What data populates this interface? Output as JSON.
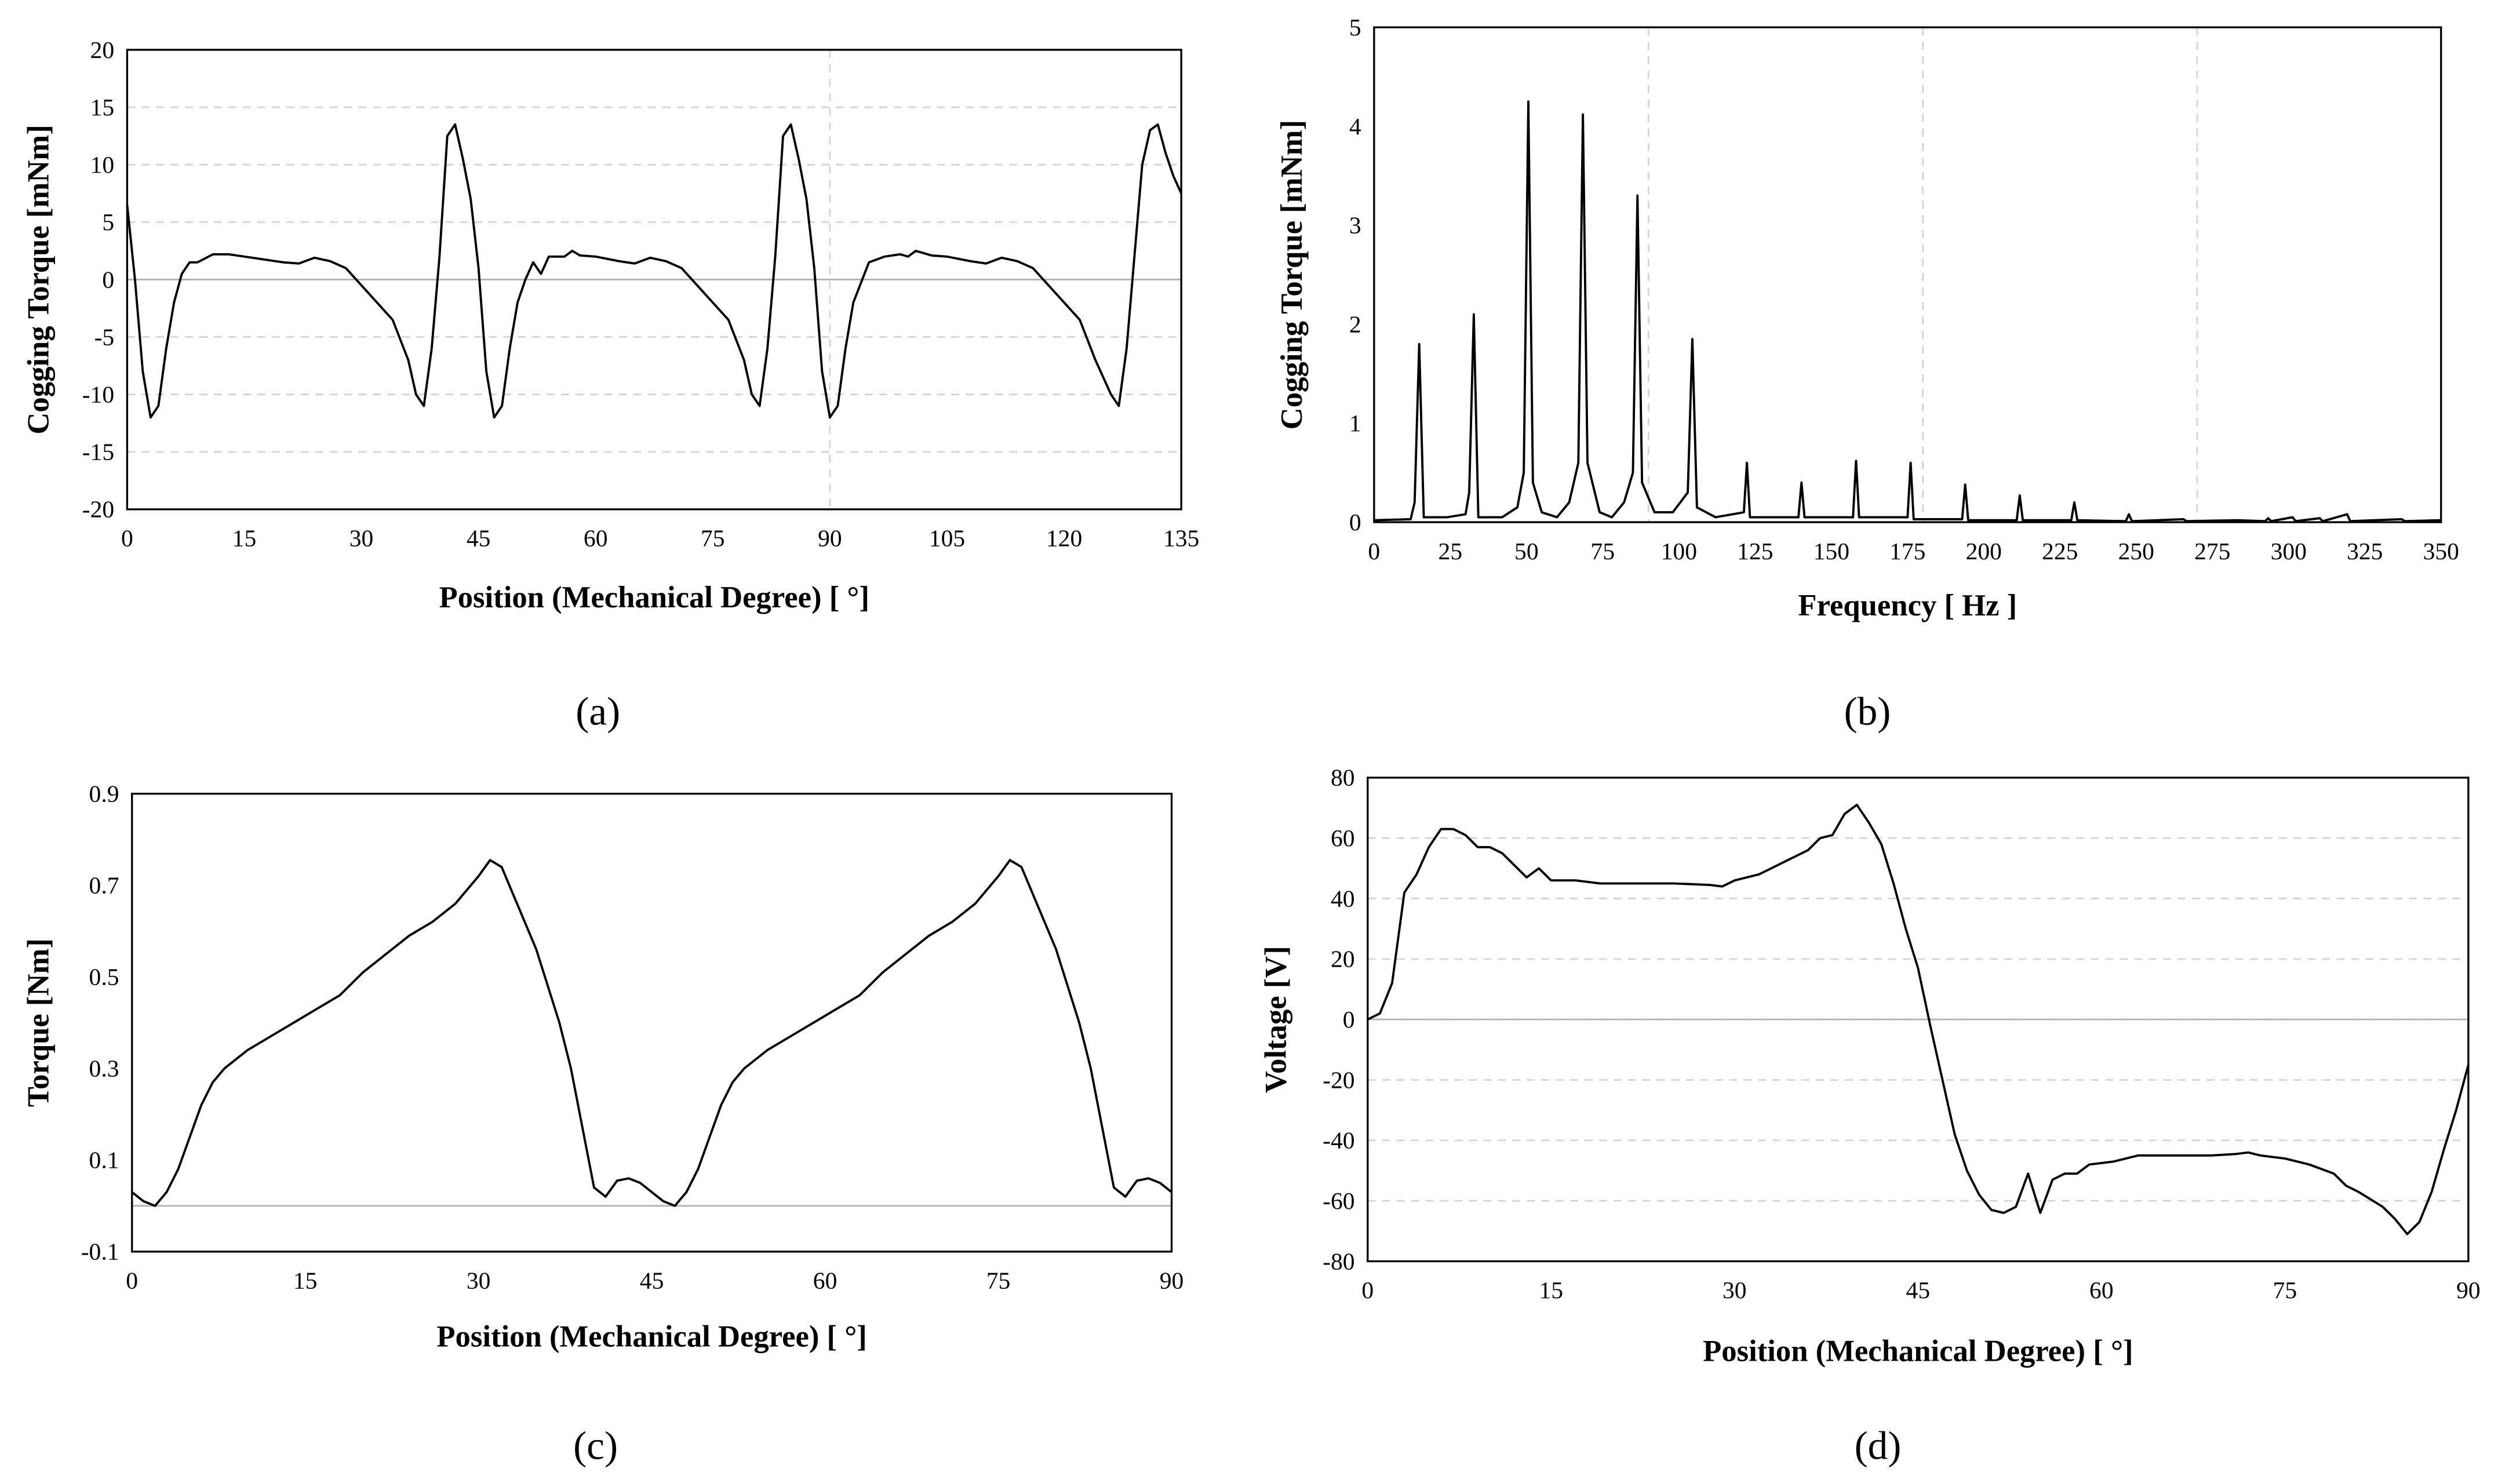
{
  "chart_data": [
    {
      "type": "line",
      "label": "(a)",
      "xlabel": "Position (Mechanical Degree)  [ °]",
      "ylabel": "Cogging Torque [mNm]",
      "xlim": [
        0,
        135
      ],
      "ylim": [
        -20,
        20
      ],
      "xticks": [
        0,
        15,
        30,
        45,
        60,
        75,
        90,
        105,
        120,
        135
      ],
      "yticks": [
        -20,
        -15,
        -10,
        -5,
        0,
        5,
        10,
        15,
        20
      ],
      "grid": true,
      "zero_line": true,
      "xgrid": [
        90
      ],
      "color": "#000000",
      "x": [
        0,
        1,
        2,
        3,
        4,
        5,
        6,
        7,
        8,
        9,
        11,
        13,
        15,
        17,
        20,
        22,
        24,
        26,
        28,
        30,
        32,
        34,
        36,
        37,
        38,
        39,
        40,
        41,
        42,
        43,
        44,
        45,
        46,
        47,
        48,
        49,
        50,
        51,
        52,
        53,
        54,
        56,
        57,
        58,
        60,
        63,
        65,
        67,
        69,
        71,
        73,
        75,
        77,
        79,
        80,
        81,
        82,
        83,
        84,
        85,
        86,
        87,
        88,
        89,
        90,
        91,
        92,
        93,
        95,
        97,
        99,
        100,
        101,
        103,
        105,
        108,
        110,
        112,
        114,
        116,
        118,
        120,
        122,
        124,
        126,
        127,
        128,
        129,
        130,
        131,
        132,
        133,
        134,
        135
      ],
      "values": [
        6.5,
        0,
        -8,
        -12,
        -11,
        -6,
        -2,
        0.5,
        1.5,
        1.5,
        2.2,
        2.2,
        2,
        1.8,
        1.5,
        1.4,
        1.9,
        1.6,
        1,
        -0.5,
        -2,
        -3.5,
        -7,
        -10,
        -11,
        -6,
        2,
        12.5,
        13.5,
        10.5,
        7,
        1,
        -8,
        -12,
        -11,
        -6,
        -2,
        0,
        1.5,
        0.5,
        2,
        2,
        2.5,
        2.1,
        2,
        1.6,
        1.4,
        1.9,
        1.6,
        1,
        -0.5,
        -2,
        -3.5,
        -7,
        -10,
        -11,
        -6,
        2,
        12.5,
        13.5,
        10.5,
        7,
        1,
        -8,
        -12,
        -11,
        -6,
        -2,
        1.5,
        2,
        2.2,
        2,
        2.5,
        2.1,
        2,
        1.6,
        1.4,
        1.9,
        1.6,
        1,
        -0.5,
        -2,
        -3.5,
        -7,
        -10,
        -11,
        -6,
        2,
        10,
        13,
        13.5,
        11,
        9,
        7.5
      ]
    },
    {
      "type": "line",
      "label": "(b)",
      "xlabel": "Frequency  [ Hz ]",
      "ylabel": "Cogging Torque [mNm]",
      "xlim": [
        0,
        350
      ],
      "ylim": [
        0,
        5
      ],
      "xticks": [
        0,
        25,
        50,
        75,
        100,
        125,
        150,
        175,
        200,
        225,
        250,
        275,
        300,
        325,
        350
      ],
      "yticks": [
        0,
        1,
        2,
        3,
        4,
        5
      ],
      "grid": false,
      "zero_line": false,
      "xgrid": [
        90,
        180,
        270
      ],
      "color": "#000000",
      "x": [
        0,
        12,
        13.3,
        14.8,
        16.3,
        24,
        30,
        31.2,
        32.7,
        34.2,
        42,
        47,
        49.1,
        50.6,
        52.1,
        55,
        60,
        64,
        67,
        68.5,
        70,
        74,
        78,
        82,
        84.9,
        86.4,
        87.9,
        92,
        98,
        102.9,
        104.4,
        105.9,
        112,
        121.3,
        122.3,
        123.3,
        139.2,
        140.2,
        141.2,
        157.1,
        158.1,
        159.1,
        175,
        176,
        177,
        192.9,
        193.9,
        194.9,
        210.8,
        211.8,
        212.8,
        228.7,
        229.7,
        230.7,
        246.6,
        247.6,
        248.6,
        265.5,
        266.5,
        283.4,
        292.3,
        293.3,
        294.3,
        301.3,
        302.3,
        310.2,
        311.2,
        319.2,
        320.2,
        337.1,
        338.1,
        350
      ],
      "values": [
        0.02,
        0.03,
        0.2,
        1.8,
        0.05,
        0.05,
        0.08,
        0.3,
        2.1,
        0.05,
        0.05,
        0.15,
        0.5,
        4.25,
        0.4,
        0.1,
        0.05,
        0.2,
        0.6,
        4.12,
        0.6,
        0.1,
        0.05,
        0.2,
        0.5,
        3.3,
        0.4,
        0.1,
        0.1,
        0.3,
        1.85,
        0.15,
        0.05,
        0.1,
        0.6,
        0.05,
        0.05,
        0.4,
        0.05,
        0.05,
        0.62,
        0.05,
        0.05,
        0.6,
        0.03,
        0.03,
        0.38,
        0.02,
        0.02,
        0.27,
        0.02,
        0.02,
        0.2,
        0.02,
        0.01,
        0.08,
        0.01,
        0.03,
        0.01,
        0.02,
        0.01,
        0.04,
        0.01,
        0.05,
        0.01,
        0.04,
        0.01,
        0.08,
        0.01,
        0.03,
        0.01,
        0.02
      ]
    },
    {
      "type": "line",
      "label": "(c)",
      "xlabel": "Position (Mechanical Degree)  [ °]",
      "ylabel": "Torque [Nm]",
      "xlim": [
        0,
        90
      ],
      "ylim": [
        -0.1,
        0.9
      ],
      "xticks": [
        0,
        15,
        30,
        45,
        60,
        75,
        90
      ],
      "yticks": [
        -0.1,
        0.1,
        0.3,
        0.5,
        0.7,
        0.9
      ],
      "grid": false,
      "zero_line": true,
      "xgrid": [],
      "color": "#000000",
      "x": [
        0,
        1,
        2,
        3,
        4,
        5,
        6,
        7,
        8,
        10,
        12,
        14,
        16,
        18,
        20,
        22,
        24,
        26,
        28,
        30,
        31,
        32,
        33,
        35,
        37,
        38,
        39,
        40,
        41,
        42,
        43,
        44,
        45,
        46,
        47,
        48,
        49,
        50,
        51,
        52,
        53,
        55,
        57,
        59,
        61,
        63,
        65,
        67,
        69,
        71,
        73,
        75,
        76,
        77,
        78,
        80,
        82,
        83,
        84,
        85,
        86,
        87,
        88,
        89,
        90
      ],
      "values": [
        0.03,
        0.01,
        0,
        0.03,
        0.08,
        0.15,
        0.22,
        0.27,
        0.3,
        0.34,
        0.37,
        0.4,
        0.43,
        0.46,
        0.51,
        0.55,
        0.59,
        0.62,
        0.66,
        0.72,
        0.755,
        0.74,
        0.68,
        0.56,
        0.4,
        0.3,
        0.17,
        0.04,
        0.02,
        0.055,
        0.06,
        0.05,
        0.03,
        0.01,
        0,
        0.03,
        0.08,
        0.15,
        0.22,
        0.27,
        0.3,
        0.34,
        0.37,
        0.4,
        0.43,
        0.46,
        0.51,
        0.55,
        0.59,
        0.62,
        0.66,
        0.72,
        0.755,
        0.74,
        0.68,
        0.56,
        0.4,
        0.3,
        0.17,
        0.04,
        0.02,
        0.055,
        0.06,
        0.05,
        0.03
      ]
    },
    {
      "type": "line",
      "label": "(d)",
      "xlabel": "Position (Mechanical Degree)  [ °]",
      "ylabel": "Voltage [V]",
      "xlim": [
        0,
        90
      ],
      "ylim": [
        -80,
        80
      ],
      "xticks": [
        0,
        15,
        30,
        45,
        60,
        75,
        90
      ],
      "yticks": [
        -80,
        -60,
        -40,
        -20,
        0,
        20,
        40,
        60,
        80
      ],
      "grid": true,
      "zero_line": true,
      "xgrid": [],
      "color": "#000000",
      "x": [
        0,
        1,
        2,
        3,
        4,
        5,
        6,
        7,
        8,
        9,
        10,
        11,
        12,
        13,
        14,
        15,
        17,
        19,
        22,
        25,
        28,
        29,
        30,
        32,
        34,
        36,
        37,
        38,
        39,
        40,
        41,
        42,
        43,
        44,
        45,
        46,
        47,
        48,
        49,
        50,
        51,
        52,
        53,
        54,
        55,
        56,
        57,
        58,
        59,
        61,
        63,
        66,
        69,
        71,
        72,
        73,
        75,
        77,
        79,
        80,
        81,
        83,
        84,
        85,
        86,
        87,
        88,
        89,
        90
      ],
      "values": [
        0,
        2,
        12,
        42,
        48,
        57,
        63,
        63,
        61,
        57,
        57,
        55,
        51,
        47,
        50,
        46,
        46,
        45,
        45,
        45,
        44.5,
        44,
        46,
        48,
        52,
        56,
        60,
        61,
        68,
        71,
        65,
        58,
        45,
        30,
        17,
        -2,
        -20,
        -38,
        -50,
        -58,
        -63,
        -64,
        -62,
        -51,
        -64,
        -53,
        -51,
        -51,
        -48,
        -47,
        -45,
        -45,
        -45,
        -44.5,
        -44,
        -45,
        -46,
        -48,
        -51,
        -55,
        -57,
        -62,
        -66,
        -71,
        -67,
        -57,
        -43,
        -30,
        -15
      ]
    }
  ]
}
